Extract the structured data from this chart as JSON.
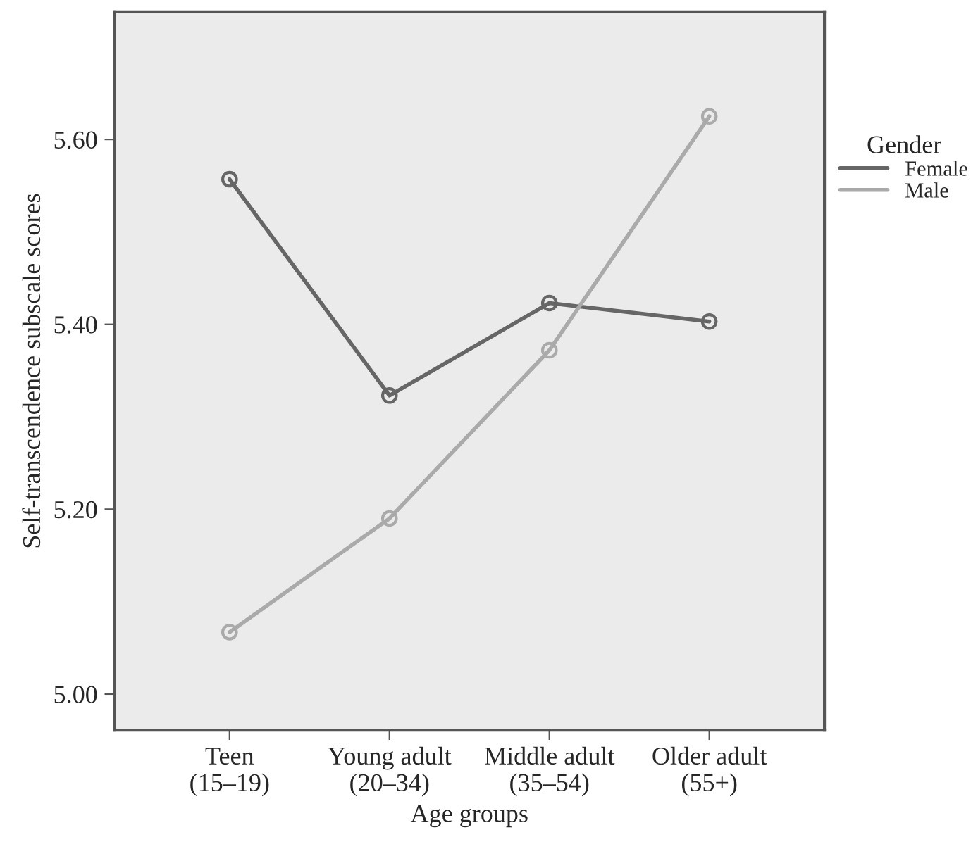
{
  "chart_data": {
    "type": "line",
    "xlabel": "Age groups",
    "ylabel": "Self-transcendence subscale scores",
    "legend_title": "Gender",
    "categories": [
      "Teen\n(15–19)",
      "Young adult\n(20–34)",
      "Middle adult\n(35–54)",
      "Older adult\n(55+)"
    ],
    "series": [
      {
        "name": "Female",
        "color": "#666666",
        "values": [
          5.557,
          5.323,
          5.423,
          5.403
        ]
      },
      {
        "name": "Male",
        "color": "#aaaaaa",
        "values": [
          5.067,
          5.19,
          5.372,
          5.625
        ]
      }
    ],
    "ylim": [
      4.961,
      5.738
    ],
    "yticks": [
      {
        "value": 5.0,
        "label": "5.00"
      },
      {
        "value": 5.2,
        "label": "5.20"
      },
      {
        "value": 5.4,
        "label": "5.40"
      },
      {
        "value": 5.6,
        "label": "5.60"
      }
    ],
    "legend": "right",
    "marker": "circle",
    "line_style": "solid",
    "grid": false
  }
}
